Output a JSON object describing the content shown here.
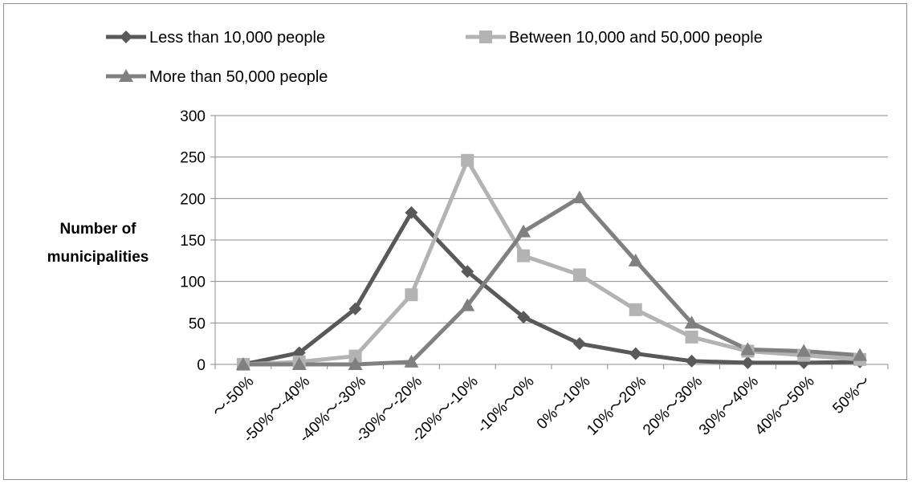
{
  "chart_data": {
    "type": "line",
    "title": "",
    "xlabel": "",
    "ylabel": "Number of municipalities",
    "ylabel_lines": [
      "Number of",
      "municipalities"
    ],
    "ylim": [
      0,
      300
    ],
    "yticks": [
      0,
      50,
      100,
      150,
      200,
      250,
      300
    ],
    "grid": "horizontal",
    "legend_position": "top",
    "categories": [
      "～-50%",
      "-50%～-40%",
      "-40%～-30%",
      "-30%～-20%",
      "-20%～-10%",
      "-10%～0%",
      "0%～10%",
      "10%～20%",
      "20%～30%",
      "30%～40%",
      "40%～50%",
      "50%～"
    ],
    "series": [
      {
        "name": "Less than 10,000 people",
        "marker": "diamond",
        "color": "#595959",
        "values": [
          0,
          14,
          67,
          183,
          112,
          57,
          25,
          13,
          4,
          2,
          2,
          3
        ]
      },
      {
        "name": "Between 10,000 and 50,000 people",
        "marker": "square",
        "color": "#b3b3b3",
        "values": [
          0,
          3,
          10,
          84,
          246,
          131,
          108,
          66,
          33,
          16,
          11,
          6
        ]
      },
      {
        "name": "More than 50,000 people",
        "marker": "triangle",
        "color": "#808080",
        "values": [
          0,
          0,
          0,
          3,
          71,
          160,
          201,
          125,
          50,
          18,
          16,
          11
        ]
      }
    ]
  }
}
